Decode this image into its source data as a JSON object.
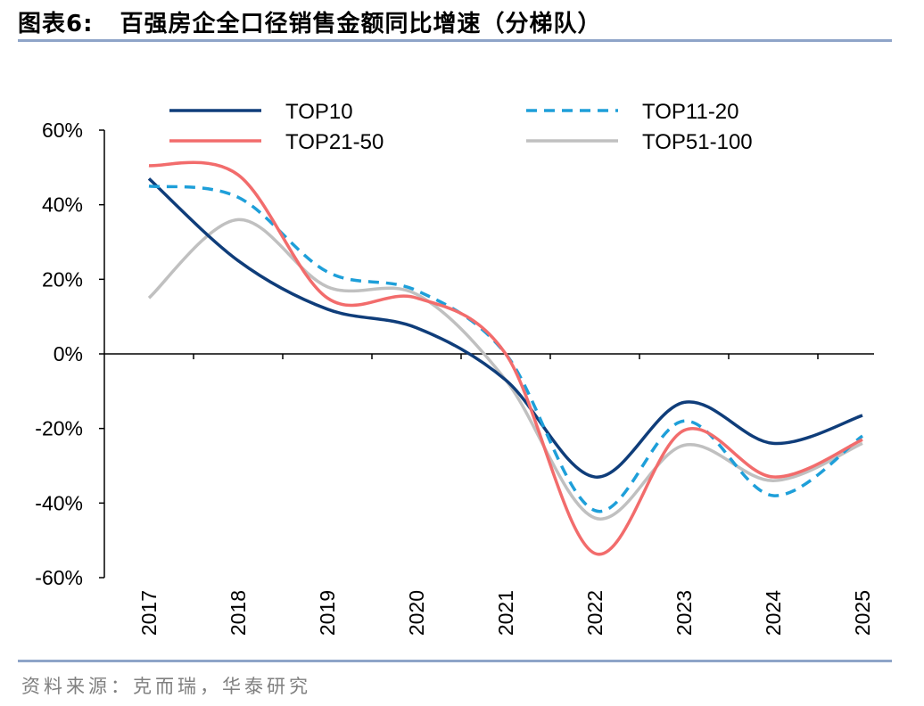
{
  "figure": {
    "label": "图表6:",
    "title": "百强房企全口径销售金额同比增速（分梯队）",
    "source": "资料来源：克而瑞，华泰研究"
  },
  "chart_data": {
    "type": "line",
    "title": "百强房企全口径销售金额同比增速（分梯队）",
    "xlabel": "",
    "ylabel": "",
    "categories": [
      "2017",
      "2018",
      "2019",
      "2020",
      "2021",
      "2022",
      "2023",
      "2024",
      "2025"
    ],
    "yticks": [
      "60%",
      "40%",
      "20%",
      "0%",
      "-20%",
      "-40%",
      "-60%"
    ],
    "ylim": [
      -60,
      60
    ],
    "grid": false,
    "legend": "top",
    "series": [
      {
        "name": "TOP10",
        "color": "#0f3d7a",
        "dash": "solid",
        "values": [
          47,
          25,
          12,
          7,
          -7,
          -33,
          -13,
          -24,
          -16.5
        ]
      },
      {
        "name": "TOP11-20",
        "color": "#1e9fd9",
        "dash": "dashed",
        "values": [
          45,
          42,
          22,
          17,
          0,
          -42,
          -18,
          -38,
          -22
        ]
      },
      {
        "name": "TOP21-50",
        "color": "#f26c6c",
        "dash": "solid",
        "values": [
          50.5,
          48,
          15,
          15,
          0,
          -53.5,
          -20.5,
          -33,
          -23
        ]
      },
      {
        "name": "TOP51-100",
        "color": "#c0c0c0",
        "dash": "solid",
        "values": [
          15,
          36,
          18,
          16,
          -7,
          -44,
          -24.5,
          -34,
          -24
        ]
      }
    ]
  }
}
